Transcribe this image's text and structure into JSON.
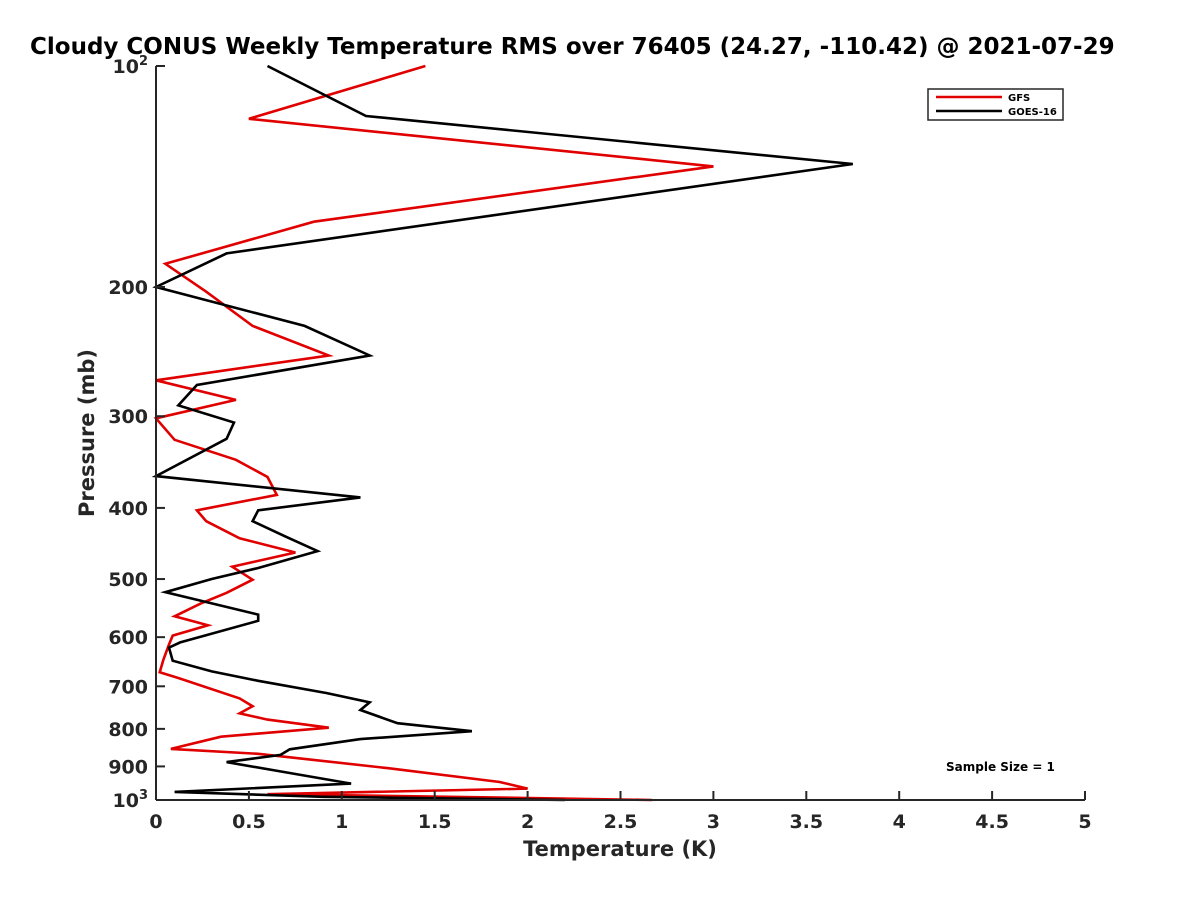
{
  "chart_data": {
    "type": "line",
    "title": "Cloudy CONUS Weekly Temperature RMS over 76405 (24.27, -110.42) @ 2021-07-29",
    "xlabel": "Temperature (K)",
    "ylabel": "Pressure (mb)",
    "xlim": [
      0,
      5
    ],
    "ylim": [
      100,
      1000
    ],
    "yscale": "log",
    "y_reversed": true,
    "x_ticks": [
      "0",
      "0.5",
      "1",
      "1.5",
      "2",
      "2.5",
      "3",
      "3.5",
      "4",
      "4.5",
      "5"
    ],
    "y_ticks": [
      {
        "value": 100,
        "label": "10",
        "exp": "2"
      },
      {
        "value": 200,
        "label": "200",
        "exp": ""
      },
      {
        "value": 300,
        "label": "300",
        "exp": ""
      },
      {
        "value": 400,
        "label": "400",
        "exp": ""
      },
      {
        "value": 500,
        "label": "500",
        "exp": ""
      },
      {
        "value": 600,
        "label": "600",
        "exp": ""
      },
      {
        "value": 700,
        "label": "700",
        "exp": ""
      },
      {
        "value": 800,
        "label": "800",
        "exp": ""
      },
      {
        "value": 900,
        "label": "900",
        "exp": ""
      },
      {
        "value": 1000,
        "label": "10",
        "exp": "3"
      }
    ],
    "grid": false,
    "legend_position": "top-right",
    "annotation": "Sample Size = 1",
    "series": [
      {
        "name": "GFS",
        "color": "#e00000",
        "points": [
          [
            1.45,
            100
          ],
          [
            0.5,
            118
          ],
          [
            3.0,
            137
          ],
          [
            0.85,
            163
          ],
          [
            0.05,
            186
          ],
          [
            0.27,
            203
          ],
          [
            0.52,
            226
          ],
          [
            0.93,
            248
          ],
          [
            0.0,
            268
          ],
          [
            0.43,
            285
          ],
          [
            0.0,
            302
          ],
          [
            0.1,
            323
          ],
          [
            0.43,
            344
          ],
          [
            0.6,
            363
          ],
          [
            0.65,
            384
          ],
          [
            0.22,
            403
          ],
          [
            0.27,
            417
          ],
          [
            0.45,
            440
          ],
          [
            0.75,
            460
          ],
          [
            0.41,
            481
          ],
          [
            0.52,
            501
          ],
          [
            0.38,
            522
          ],
          [
            0.24,
            540
          ],
          [
            0.1,
            562
          ],
          [
            0.28,
            578
          ],
          [
            0.09,
            597
          ],
          [
            0.07,
            614
          ],
          [
            0.04,
            644
          ],
          [
            0.02,
            670
          ],
          [
            0.12,
            682
          ],
          [
            0.45,
            727
          ],
          [
            0.52,
            745
          ],
          [
            0.45,
            762
          ],
          [
            0.6,
            777
          ],
          [
            0.93,
            797
          ],
          [
            0.35,
            820
          ],
          [
            0.08,
            852
          ],
          [
            0.55,
            865
          ],
          [
            1.25,
            905
          ],
          [
            1.85,
            945
          ],
          [
            2.0,
            965
          ],
          [
            0.6,
            982
          ],
          [
            1.8,
            992
          ],
          [
            2.67,
            1000
          ]
        ]
      },
      {
        "name": "GOES-16",
        "color": "#000000",
        "points": [
          [
            0.6,
            100
          ],
          [
            1.13,
            117
          ],
          [
            3.75,
            136
          ],
          [
            0.38,
            180
          ],
          [
            0.0,
            200
          ],
          [
            0.8,
            226
          ],
          [
            1.15,
            248
          ],
          [
            0.22,
            272
          ],
          [
            0.12,
            290
          ],
          [
            0.42,
            306
          ],
          [
            0.38,
            322
          ],
          [
            0.0,
            362
          ],
          [
            1.1,
            387
          ],
          [
            0.55,
            403
          ],
          [
            0.52,
            417
          ],
          [
            0.7,
            438
          ],
          [
            0.87,
            458
          ],
          [
            0.55,
            483
          ],
          [
            0.3,
            500
          ],
          [
            0.05,
            521
          ],
          [
            0.55,
            559
          ],
          [
            0.55,
            570
          ],
          [
            0.13,
            610
          ],
          [
            0.07,
            620
          ],
          [
            0.09,
            646
          ],
          [
            0.3,
            668
          ],
          [
            0.55,
            688
          ],
          [
            0.92,
            715
          ],
          [
            1.15,
            736
          ],
          [
            1.1,
            754
          ],
          [
            1.3,
            786
          ],
          [
            1.7,
            806
          ],
          [
            1.1,
            826
          ],
          [
            0.72,
            853
          ],
          [
            0.67,
            868
          ],
          [
            0.38,
            888
          ],
          [
            0.7,
            917
          ],
          [
            1.05,
            950
          ],
          [
            0.1,
            975
          ],
          [
            0.9,
            990
          ],
          [
            2.2,
            1000
          ]
        ]
      }
    ]
  }
}
